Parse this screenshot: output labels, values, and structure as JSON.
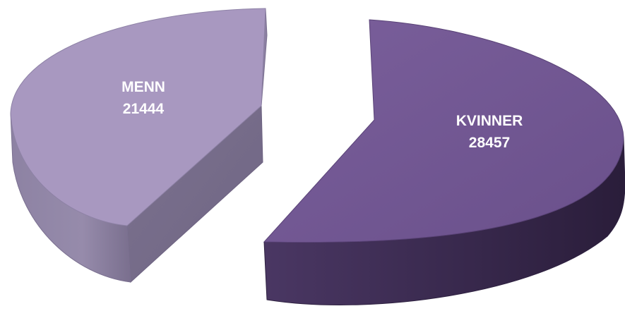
{
  "chart_data": {
    "type": "pie",
    "style": "3d-exploded",
    "slices": [
      {
        "label": "MENN",
        "value": 21444,
        "color": "#a898c0",
        "side_color": "#7f7492"
      },
      {
        "label": "KVINNER",
        "value": 28457,
        "color": "#6f5590",
        "side_color": "#3d2c53"
      }
    ]
  }
}
